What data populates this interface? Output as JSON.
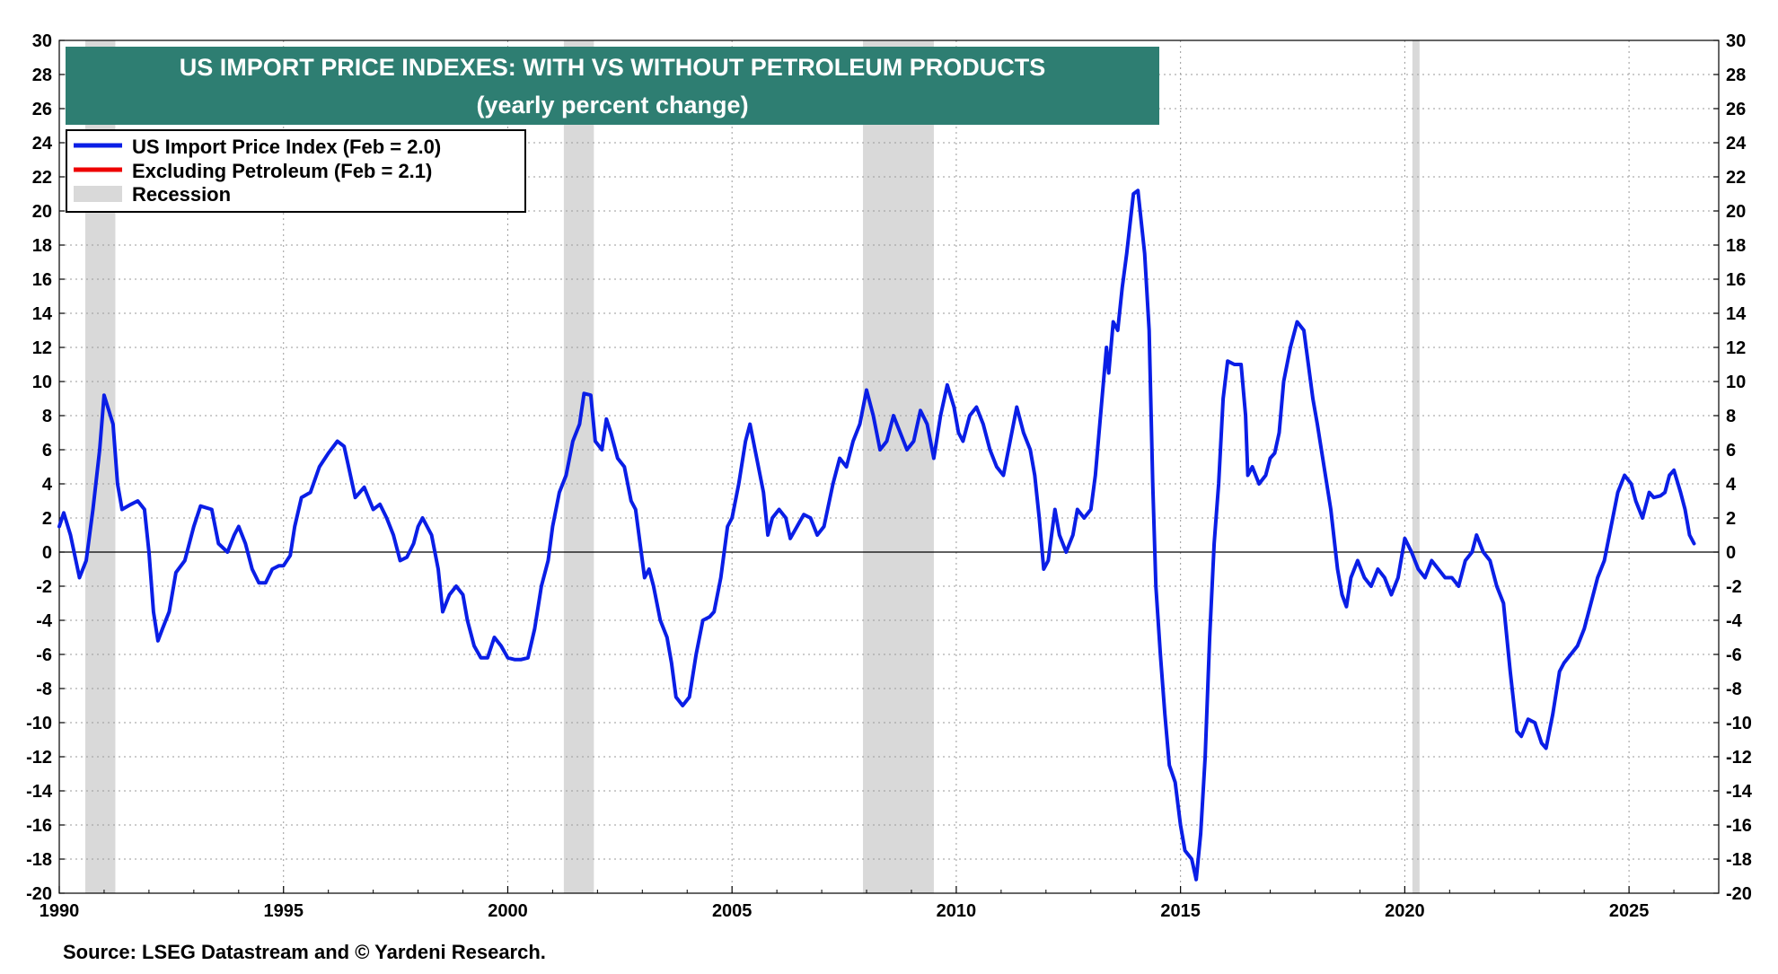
{
  "chart_data": {
    "type": "line",
    "title": "US IMPORT PRICE INDEXES: WITH VS WITHOUT PETROLEUM PRODUCTS",
    "subtitle": "(yearly percent change)",
    "source": "Source: LSEG Datastream and © Yardeni Research.",
    "xlim": [
      1990,
      2027
    ],
    "ylim": [
      -20,
      30
    ],
    "y_ticks": [
      -20,
      -18,
      -16,
      -14,
      -12,
      -10,
      -8,
      -6,
      -4,
      -2,
      0,
      2,
      4,
      6,
      8,
      10,
      12,
      14,
      16,
      18,
      20,
      22,
      24,
      26,
      28,
      30
    ],
    "x_ticks": [
      1990,
      1995,
      2000,
      2005,
      2010,
      2015,
      2020,
      2025
    ],
    "grid": true,
    "legend": {
      "placement": "top-left",
      "entries": [
        {
          "label": "US Import Price Index  (Feb = 2.0)",
          "color": "#0a1ee6",
          "kind": "line"
        },
        {
          "label": "Excluding Petroleum  (Feb = 2.1)",
          "color": "#ee0000",
          "kind": "line"
        },
        {
          "label": "Recession",
          "color": "#d9d9d9",
          "kind": "band"
        }
      ]
    },
    "recessions": [
      [
        1990.58,
        1991.25
      ],
      [
        2001.25,
        2001.92
      ],
      [
        2007.92,
        2009.5
      ],
      [
        2020.17,
        2020.33
      ]
    ],
    "series": [
      {
        "name": "US Import Price Index",
        "color": "#0a1ee6",
        "points": [
          [
            1990.0,
            1.5
          ],
          [
            1990.1,
            2.3
          ],
          [
            1990.25,
            1.0
          ],
          [
            1990.45,
            -1.5
          ],
          [
            1990.6,
            -0.5
          ],
          [
            1990.75,
            2.5
          ],
          [
            1990.9,
            6.0
          ],
          [
            1991.0,
            9.2
          ],
          [
            1991.2,
            7.5
          ],
          [
            1991.3,
            4.0
          ],
          [
            1991.4,
            2.5
          ],
          [
            1991.6,
            2.8
          ],
          [
            1991.75,
            3.0
          ],
          [
            1991.9,
            2.5
          ],
          [
            1992.0,
            0.0
          ],
          [
            1992.1,
            -3.5
          ],
          [
            1992.2,
            -5.2
          ],
          [
            1992.3,
            -4.5
          ],
          [
            1992.45,
            -3.5
          ],
          [
            1992.6,
            -1.2
          ],
          [
            1992.8,
            -0.5
          ],
          [
            1993.0,
            1.5
          ],
          [
            1993.15,
            2.7
          ],
          [
            1993.4,
            2.5
          ],
          [
            1993.55,
            0.5
          ],
          [
            1993.75,
            0.0
          ],
          [
            1993.9,
            1.0
          ],
          [
            1994.0,
            1.5
          ],
          [
            1994.15,
            0.5
          ],
          [
            1994.3,
            -1.0
          ],
          [
            1994.45,
            -1.8
          ],
          [
            1994.6,
            -1.8
          ],
          [
            1994.75,
            -1.0
          ],
          [
            1994.9,
            -0.8
          ],
          [
            1995.0,
            -0.8
          ],
          [
            1995.15,
            -0.2
          ],
          [
            1995.25,
            1.5
          ],
          [
            1995.4,
            3.2
          ],
          [
            1995.6,
            3.5
          ],
          [
            1995.8,
            5.0
          ],
          [
            1996.0,
            5.8
          ],
          [
            1996.2,
            6.5
          ],
          [
            1996.35,
            6.2
          ],
          [
            1996.45,
            5.0
          ],
          [
            1996.6,
            3.2
          ],
          [
            1996.8,
            3.8
          ],
          [
            1997.0,
            2.5
          ],
          [
            1997.15,
            2.8
          ],
          [
            1997.3,
            2.0
          ],
          [
            1997.45,
            1.0
          ],
          [
            1997.6,
            -0.5
          ],
          [
            1997.75,
            -0.3
          ],
          [
            1997.9,
            0.5
          ],
          [
            1998.0,
            1.5
          ],
          [
            1998.1,
            2.0
          ],
          [
            1998.3,
            1.0
          ],
          [
            1998.45,
            -1.0
          ],
          [
            1998.55,
            -3.5
          ],
          [
            1998.7,
            -2.5
          ],
          [
            1998.85,
            -2.0
          ],
          [
            1999.0,
            -2.5
          ],
          [
            1999.1,
            -4.0
          ],
          [
            1999.25,
            -5.5
          ],
          [
            1999.4,
            -6.2
          ],
          [
            1999.55,
            -6.2
          ],
          [
            1999.7,
            -5.0
          ],
          [
            1999.85,
            -5.5
          ],
          [
            2000.0,
            -6.2
          ],
          [
            2000.15,
            -6.3
          ],
          [
            2000.3,
            -6.3
          ],
          [
            2000.45,
            -6.2
          ],
          [
            2000.6,
            -4.5
          ],
          [
            2000.75,
            -2.0
          ],
          [
            2000.9,
            -0.5
          ],
          [
            2001.0,
            1.5
          ],
          [
            2001.15,
            3.5
          ],
          [
            2001.3,
            4.5
          ],
          [
            2001.45,
            6.5
          ],
          [
            2001.6,
            7.5
          ],
          [
            2001.7,
            9.3
          ],
          [
            2001.85,
            9.2
          ],
          [
            2001.95,
            6.5
          ],
          [
            2002.1,
            6.0
          ],
          [
            2002.2,
            7.8
          ],
          [
            2002.3,
            7.0
          ],
          [
            2002.45,
            5.5
          ],
          [
            2002.6,
            5.0
          ],
          [
            2002.75,
            3.0
          ],
          [
            2002.85,
            2.5
          ],
          [
            2002.95,
            0.5
          ],
          [
            2003.05,
            -1.5
          ],
          [
            2003.15,
            -1.0
          ],
          [
            2003.25,
            -2.0
          ],
          [
            2003.4,
            -4.0
          ],
          [
            2003.55,
            -5.0
          ],
          [
            2003.65,
            -6.5
          ],
          [
            2003.75,
            -8.5
          ],
          [
            2003.9,
            -9.0
          ],
          [
            2004.05,
            -8.5
          ],
          [
            2004.2,
            -6.0
          ],
          [
            2004.35,
            -4.0
          ],
          [
            2004.5,
            -3.8
          ],
          [
            2004.6,
            -3.5
          ],
          [
            2004.75,
            -1.5
          ],
          [
            2004.9,
            1.5
          ],
          [
            2005.0,
            2.0
          ],
          [
            2005.15,
            4.0
          ],
          [
            2005.3,
            6.5
          ],
          [
            2005.4,
            7.5
          ],
          [
            2005.55,
            5.5
          ],
          [
            2005.7,
            3.5
          ],
          [
            2005.8,
            1.0
          ],
          [
            2005.9,
            2.0
          ],
          [
            2006.05,
            2.5
          ],
          [
            2006.2,
            2.0
          ],
          [
            2006.3,
            0.8
          ],
          [
            2006.45,
            1.5
          ],
          [
            2006.6,
            2.2
          ],
          [
            2006.75,
            2.0
          ],
          [
            2006.9,
            1.0
          ],
          [
            2007.05,
            1.5
          ],
          [
            2007.25,
            4.0
          ],
          [
            2007.4,
            5.5
          ],
          [
            2007.55,
            5.0
          ],
          [
            2007.7,
            6.5
          ],
          [
            2007.85,
            7.5
          ],
          [
            2008.0,
            9.5
          ],
          [
            2008.15,
            8.0
          ],
          [
            2008.3,
            6.0
          ],
          [
            2008.45,
            6.5
          ],
          [
            2008.6,
            8.0
          ],
          [
            2008.75,
            7.0
          ],
          [
            2008.9,
            6.0
          ],
          [
            2009.05,
            6.5
          ],
          [
            2009.2,
            8.3
          ],
          [
            2009.35,
            7.5
          ],
          [
            2009.5,
            5.5
          ],
          [
            2009.65,
            8.0
          ],
          [
            2009.8,
            9.8
          ],
          [
            2009.95,
            8.5
          ],
          [
            2010.05,
            7.0
          ],
          [
            2010.15,
            6.5
          ],
          [
            2010.3,
            8.0
          ],
          [
            2010.45,
            8.5
          ],
          [
            2010.6,
            7.5
          ],
          [
            2010.75,
            6.0
          ],
          [
            2010.9,
            5.0
          ],
          [
            2011.05,
            4.5
          ],
          [
            2011.2,
            6.5
          ],
          [
            2011.35,
            8.5
          ],
          [
            2011.5,
            7.0
          ],
          [
            2011.65,
            6.0
          ],
          [
            2011.75,
            4.5
          ],
          [
            2011.85,
            2.0
          ],
          [
            2011.95,
            -1.0
          ],
          [
            2012.05,
            -0.5
          ],
          [
            2012.2,
            2.5
          ],
          [
            2012.3,
            1.0
          ],
          [
            2012.45,
            0.0
          ],
          [
            2012.6,
            1.0
          ],
          [
            2012.7,
            2.5
          ],
          [
            2012.85,
            2.0
          ],
          [
            2013.0,
            2.5
          ],
          [
            2013.1,
            4.5
          ],
          [
            2013.25,
            9.0
          ],
          [
            2013.35,
            12.0
          ],
          [
            2013.4,
            10.5
          ],
          [
            2013.5,
            13.5
          ],
          [
            2013.6,
            13.0
          ],
          [
            2013.7,
            15.5
          ],
          [
            2013.8,
            17.5
          ],
          [
            2013.95,
            21.0
          ],
          [
            2014.05,
            21.2
          ],
          [
            2014.2,
            17.5
          ],
          [
            2014.3,
            13.0
          ],
          [
            2014.38,
            4.0
          ],
          [
            2014.45,
            -2.0
          ],
          [
            2014.55,
            -6.0
          ],
          [
            2014.65,
            -9.5
          ],
          [
            2014.75,
            -12.5
          ],
          [
            2014.88,
            -13.5
          ],
          [
            2015.0,
            -16.0
          ],
          [
            2015.1,
            -17.5
          ],
          [
            2015.25,
            -18.0
          ],
          [
            2015.35,
            -19.2
          ],
          [
            2015.45,
            -16.5
          ],
          [
            2015.55,
            -12.0
          ],
          [
            2015.65,
            -5.0
          ],
          [
            2015.75,
            0.5
          ],
          [
            2015.85,
            4.0
          ],
          [
            2015.95,
            9.0
          ],
          [
            2016.05,
            11.2
          ],
          [
            2016.2,
            11.0
          ],
          [
            2016.35,
            11.0
          ],
          [
            2016.45,
            8.0
          ],
          [
            2016.5,
            4.5
          ],
          [
            2016.6,
            5.0
          ],
          [
            2016.75,
            4.0
          ],
          [
            2016.9,
            4.5
          ],
          [
            2017.0,
            5.5
          ],
          [
            2017.1,
            5.8
          ],
          [
            2017.2,
            7.0
          ],
          [
            2017.3,
            10.0
          ],
          [
            2017.45,
            12.0
          ],
          [
            2017.6,
            13.5
          ],
          [
            2017.75,
            13.0
          ],
          [
            2017.85,
            11.0
          ],
          [
            2017.95,
            9.0
          ],
          [
            2018.05,
            7.5
          ],
          [
            2018.2,
            5.0
          ],
          [
            2018.35,
            2.5
          ],
          [
            2018.5,
            -1.0
          ],
          [
            2018.6,
            -2.5
          ],
          [
            2018.7,
            -3.2
          ],
          [
            2018.8,
            -1.5
          ],
          [
            2018.95,
            -0.5
          ],
          [
            2019.1,
            -1.5
          ],
          [
            2019.25,
            -2.0
          ],
          [
            2019.4,
            -1.0
          ],
          [
            2019.55,
            -1.5
          ],
          [
            2019.7,
            -2.5
          ],
          [
            2019.85,
            -1.5
          ],
          [
            2020.0,
            0.8
          ],
          [
            2020.15,
            0.0
          ],
          [
            2020.3,
            -1.0
          ],
          [
            2020.45,
            -1.5
          ],
          [
            2020.6,
            -0.5
          ],
          [
            2020.75,
            -1.0
          ],
          [
            2020.9,
            -1.5
          ],
          [
            2021.05,
            -1.5
          ],
          [
            2021.2,
            -2.0
          ],
          [
            2021.35,
            -0.5
          ],
          [
            2021.5,
            0.0
          ],
          [
            2021.6,
            1.0
          ],
          [
            2021.75,
            0.0
          ],
          [
            2021.9,
            -0.5
          ],
          [
            2022.05,
            -2.0
          ],
          [
            2022.2,
            -3.0
          ],
          [
            2022.35,
            -7.0
          ],
          [
            2022.5,
            -10.5
          ],
          [
            2022.6,
            -10.8
          ],
          [
            2022.75,
            -9.8
          ],
          [
            2022.9,
            -10.0
          ],
          [
            2023.05,
            -11.2
          ],
          [
            2023.15,
            -11.5
          ],
          [
            2023.3,
            -9.5
          ],
          [
            2023.45,
            -7.0
          ],
          [
            2023.55,
            -6.5
          ],
          [
            2023.7,
            -6.0
          ],
          [
            2023.85,
            -5.5
          ],
          [
            2024.0,
            -4.5
          ],
          [
            2024.15,
            -3.0
          ],
          [
            2024.3,
            -1.5
          ],
          [
            2024.45,
            -0.5
          ],
          [
            2024.6,
            1.5
          ],
          [
            2024.75,
            3.5
          ],
          [
            2024.9,
            4.5
          ],
          [
            2025.05,
            4.0
          ],
          [
            2025.15,
            3.0
          ],
          [
            2025.3,
            2.0
          ],
          [
            2025.45,
            3.5
          ],
          [
            2025.55,
            3.2
          ],
          [
            2025.7,
            3.3
          ],
          [
            2025.8,
            3.5
          ],
          [
            2025.9,
            4.5
          ],
          [
            2026.0,
            4.8
          ],
          [
            2026.15,
            3.5
          ],
          [
            2026.25,
            2.5
          ],
          [
            2026.35,
            1.0
          ],
          [
            2026.45,
            0.5
          ]
        ]
      },
      {
        "name": "Excluding Petroleum",
        "color": "#ee0000",
        "points": []
      }
    ]
  }
}
